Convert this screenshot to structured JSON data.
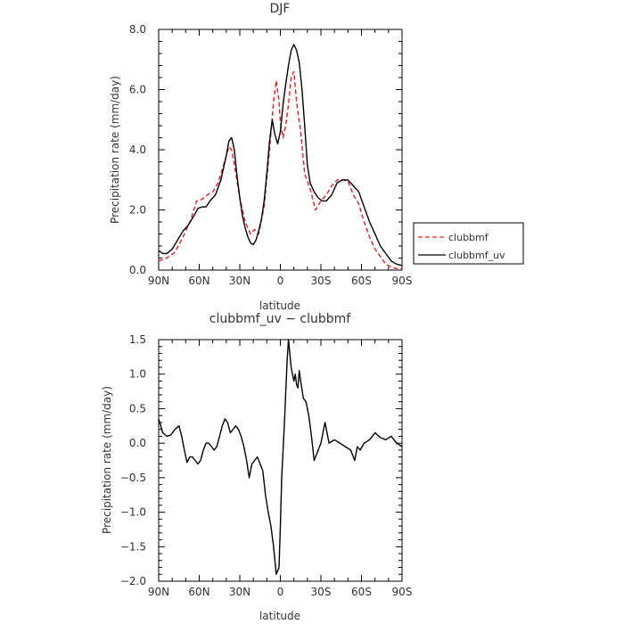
{
  "chart_data": [
    {
      "type": "line",
      "title": "DJF",
      "xlabel": "latitude",
      "ylabel": "Precipitation rate (mm/day)",
      "xlim": [
        90,
        -90
      ],
      "ylim": [
        0,
        8
      ],
      "xticks": [
        90,
        60,
        30,
        0,
        -30,
        -60,
        -90
      ],
      "xtick_labels": [
        "90N",
        "60N",
        "30N",
        "0",
        "30S",
        "60S",
        "90S"
      ],
      "yticks": [
        0,
        2,
        4,
        6,
        8
      ],
      "ytick_labels": [
        "0.0",
        "2.0",
        "4.0",
        "6.0",
        "8.0"
      ],
      "legend_position": "right",
      "series": [
        {
          "name": "clubbmf",
          "color": "#e02020",
          "dash": "dashed",
          "x": [
            90,
            84,
            78,
            72,
            66,
            62,
            58,
            54,
            50,
            46,
            42,
            38,
            36,
            34,
            30,
            26,
            22,
            19,
            16,
            12,
            8,
            5,
            3,
            1,
            0,
            -2,
            -4,
            -6,
            -8,
            -10,
            -12,
            -15,
            -18,
            -22,
            -26,
            -30,
            -34,
            -38,
            -42,
            -46,
            -50,
            -54,
            -58,
            -62,
            -66,
            -70,
            -74,
            -78,
            -82,
            -86,
            -90
          ],
          "values": [
            0.3,
            0.4,
            0.6,
            1.1,
            1.7,
            2.3,
            2.35,
            2.5,
            2.6,
            2.9,
            3.5,
            4.1,
            4.0,
            3.5,
            2.4,
            1.6,
            1.2,
            1.35,
            1.2,
            2.1,
            4.0,
            5.6,
            6.3,
            5.6,
            4.9,
            4.4,
            4.8,
            5.5,
            6.4,
            6.6,
            5.6,
            4.6,
            3.2,
            2.7,
            2.0,
            2.3,
            2.5,
            2.8,
            3.0,
            3.0,
            2.95,
            2.5,
            2.2,
            1.6,
            1.1,
            0.7,
            0.45,
            0.2,
            0.1,
            0.05,
            0.05
          ]
        },
        {
          "name": "clubbmf_uv",
          "color": "#000000",
          "dash": "solid",
          "x": [
            90,
            87,
            84,
            80,
            76,
            72,
            68,
            64,
            61,
            58,
            55,
            52,
            48,
            44,
            40,
            38,
            36,
            34,
            32,
            30,
            28,
            26,
            24,
            22,
            20,
            18,
            16,
            14,
            12,
            10,
            8,
            6,
            4,
            2,
            0,
            -2,
            -4,
            -6,
            -8,
            -10,
            -12,
            -14,
            -16,
            -18,
            -20,
            -22,
            -25,
            -28,
            -31,
            -34,
            -38,
            -42,
            -46,
            -50,
            -54,
            -58,
            -62,
            -66,
            -70,
            -74,
            -78,
            -82,
            -86,
            -90
          ],
          "values": [
            0.65,
            0.55,
            0.55,
            0.7,
            1.0,
            1.3,
            1.5,
            1.8,
            2.05,
            2.1,
            2.1,
            2.3,
            2.5,
            3.0,
            3.8,
            4.3,
            4.4,
            4.0,
            3.1,
            2.4,
            1.8,
            1.4,
            1.1,
            0.9,
            0.85,
            1.0,
            1.3,
            1.7,
            2.3,
            3.2,
            4.3,
            5.0,
            4.5,
            4.2,
            4.6,
            5.5,
            6.2,
            6.8,
            7.3,
            7.5,
            7.3,
            6.9,
            6.0,
            4.8,
            3.5,
            2.9,
            2.6,
            2.4,
            2.3,
            2.3,
            2.5,
            2.9,
            3.0,
            3.0,
            2.8,
            2.6,
            2.1,
            1.6,
            1.2,
            0.8,
            0.55,
            0.3,
            0.2,
            0.15
          ]
        }
      ]
    },
    {
      "type": "line",
      "title": "clubbmf_uv − clubbmf",
      "xlabel": "latitude",
      "ylabel": "Precipitation rate (mm/day)",
      "xlim": [
        90,
        -90
      ],
      "ylim": [
        -2.0,
        1.5
      ],
      "xticks": [
        90,
        60,
        30,
        0,
        -30,
        -60,
        -90
      ],
      "xtick_labels": [
        "90N",
        "60N",
        "30N",
        "0",
        "30S",
        "60S",
        "90S"
      ],
      "yticks": [
        -2.0,
        -1.5,
        -1.0,
        -0.5,
        0.0,
        0.5,
        1.0,
        1.5
      ],
      "ytick_labels": [
        "−2.0",
        "−1.5",
        "−1.0",
        "−0.5",
        "0.0",
        "0.5",
        "1.0",
        "1.5"
      ],
      "series": [
        {
          "color": "#000000",
          "dash": "solid",
          "x": [
            90,
            87,
            84,
            81,
            78,
            75,
            73,
            71,
            69,
            67,
            65,
            63,
            61,
            59,
            57,
            55,
            53,
            51,
            49,
            47,
            45,
            43,
            41,
            39,
            37,
            35,
            33,
            31,
            29,
            27,
            25,
            23,
            21,
            19,
            17,
            15,
            13,
            11,
            9,
            7,
            5,
            3,
            1,
            0,
            -1,
            -3,
            -5,
            -6,
            -7,
            -8,
            -9,
            -10,
            -11,
            -12,
            -13,
            -14,
            -15,
            -17,
            -19,
            -21,
            -23,
            -25,
            -27,
            -30,
            -33,
            -36,
            -40,
            -44,
            -48,
            -52,
            -55,
            -57,
            -59,
            -62,
            -66,
            -70,
            -74,
            -78,
            -82,
            -86,
            -90
          ],
          "values": [
            0.35,
            0.15,
            0.1,
            0.12,
            0.2,
            0.25,
            0.1,
            -0.1,
            -0.28,
            -0.2,
            -0.2,
            -0.25,
            -0.3,
            -0.25,
            -0.1,
            0.0,
            0.0,
            -0.05,
            -0.1,
            -0.05,
            0.1,
            0.25,
            0.35,
            0.3,
            0.15,
            0.2,
            0.25,
            0.2,
            0.1,
            -0.05,
            -0.25,
            -0.5,
            -0.3,
            -0.25,
            -0.2,
            -0.3,
            -0.4,
            -0.75,
            -1.0,
            -1.2,
            -1.5,
            -1.9,
            -1.8,
            -1.2,
            -0.5,
            0.3,
            1.2,
            1.5,
            1.3,
            1.1,
            1.0,
            0.9,
            1.0,
            0.85,
            0.8,
            1.05,
            0.9,
            0.65,
            0.6,
            0.4,
            0.1,
            -0.25,
            -0.15,
            0.0,
            0.3,
            0.0,
            0.05,
            0.0,
            -0.05,
            -0.1,
            -0.25,
            -0.05,
            -0.1,
            0.0,
            0.05,
            0.15,
            0.08,
            0.05,
            0.1,
            0.0,
            -0.05
          ]
        }
      ]
    }
  ]
}
